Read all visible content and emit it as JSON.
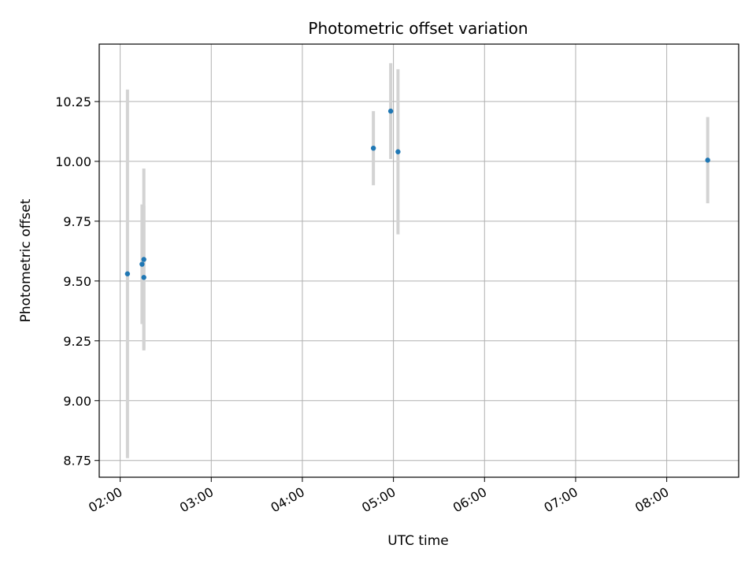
{
  "chart_data": {
    "type": "scatter",
    "title": "Photometric offset variation",
    "xlabel": "UTC time",
    "ylabel": "Photometric offset",
    "grid": true,
    "x_units": "hours (UTC)",
    "xlim": [
      1.77,
      8.79
    ],
    "ylim": [
      8.68,
      10.49
    ],
    "x_ticks": [
      {
        "value": 2.0,
        "label": "02:00"
      },
      {
        "value": 3.0,
        "label": "03:00"
      },
      {
        "value": 4.0,
        "label": "04:00"
      },
      {
        "value": 5.0,
        "label": "05:00"
      },
      {
        "value": 6.0,
        "label": "06:00"
      },
      {
        "value": 7.0,
        "label": "07:00"
      },
      {
        "value": 8.0,
        "label": "08:00"
      }
    ],
    "y_ticks": [
      {
        "value": 8.75,
        "label": "8.75"
      },
      {
        "value": 9.0,
        "label": "9.00"
      },
      {
        "value": 9.25,
        "label": "9.25"
      },
      {
        "value": 9.5,
        "label": "9.50"
      },
      {
        "value": 9.75,
        "label": "9.75"
      },
      {
        "value": 10.0,
        "label": "10.00"
      },
      {
        "value": 10.25,
        "label": "10.25"
      }
    ],
    "colors": {
      "point": "#1f77b4",
      "errorbar": "#d3d3d3",
      "grid": "#b0b0b0",
      "axis": "#000000"
    },
    "points": [
      {
        "x": 2.08,
        "y": 9.53,
        "err": 0.77
      },
      {
        "x": 2.24,
        "y": 9.57,
        "err": 0.25
      },
      {
        "x": 2.26,
        "y": 9.59,
        "err": 0.38
      },
      {
        "x": 2.26,
        "y": 9.515,
        "err": 0.3
      },
      {
        "x": 4.78,
        "y": 10.055,
        "err": 0.155
      },
      {
        "x": 4.97,
        "y": 10.21,
        "err": 0.2
      },
      {
        "x": 5.05,
        "y": 10.04,
        "err": 0.345
      },
      {
        "x": 8.45,
        "y": 10.005,
        "err": 0.18
      }
    ]
  }
}
